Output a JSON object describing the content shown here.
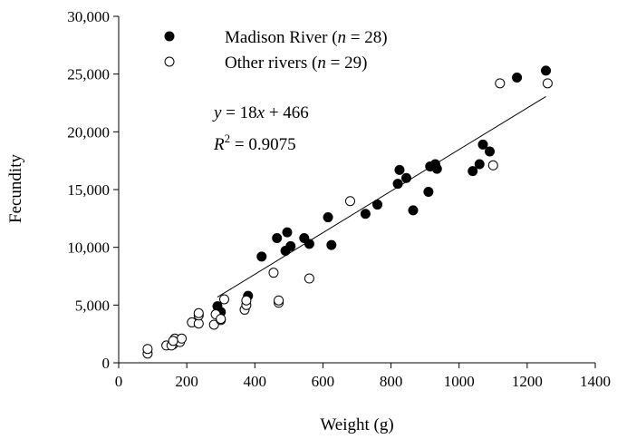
{
  "chart_data": {
    "type": "scatter",
    "title": "",
    "xlabel": "Weight (g)",
    "ylabel": "Fecundity",
    "xlim": [
      0,
      1400
    ],
    "ylim": [
      0,
      30000
    ],
    "x_ticks": [
      "0",
      "200",
      "400",
      "600",
      "800",
      "1000",
      "1200",
      "1400"
    ],
    "y_ticks": [
      "0",
      "5,000",
      "10,000",
      "15,000",
      "20,000",
      "25,000",
      "30,000"
    ],
    "grid": false,
    "legend_position": "top-left",
    "legend": [
      {
        "prefix": "Madison River (",
        "n_symbol": "n",
        "suffix": " = 28)",
        "marker": "filled"
      },
      {
        "prefix": "Other rivers (",
        "n_symbol": "n",
        "suffix": " = 29)",
        "marker": "open"
      }
    ],
    "annotation": {
      "eq_y": "y",
      "eq_mid": " = 18",
      "eq_x": "x",
      "eq_end": " + 466",
      "r_symbol": "R",
      "r_sup": "2",
      "r_value": " = 0.9075"
    },
    "series": [
      {
        "marker": "filled",
        "points": [
          [
            290,
            4900
          ],
          [
            300,
            4400
          ],
          [
            380,
            5800
          ],
          [
            420,
            9200
          ],
          [
            465,
            10800
          ],
          [
            490,
            9700
          ],
          [
            495,
            11300
          ],
          [
            505,
            10100
          ],
          [
            545,
            10800
          ],
          [
            560,
            10300
          ],
          [
            615,
            12600
          ],
          [
            625,
            10200
          ],
          [
            725,
            12900
          ],
          [
            760,
            13700
          ],
          [
            820,
            15500
          ],
          [
            825,
            16700
          ],
          [
            845,
            16000
          ],
          [
            865,
            13200
          ],
          [
            910,
            14800
          ],
          [
            915,
            17000
          ],
          [
            930,
            17200
          ],
          [
            935,
            16800
          ],
          [
            1040,
            16600
          ],
          [
            1060,
            17200
          ],
          [
            1070,
            18900
          ],
          [
            1090,
            18300
          ],
          [
            1170,
            24700
          ],
          [
            1255,
            25300
          ]
        ]
      },
      {
        "marker": "open",
        "points": [
          [
            85,
            800
          ],
          [
            85,
            1200
          ],
          [
            140,
            1500
          ],
          [
            160,
            1600
          ],
          [
            165,
            2100
          ],
          [
            180,
            1800
          ],
          [
            185,
            2100
          ],
          [
            215,
            3500
          ],
          [
            235,
            3400
          ],
          [
            235,
            4100
          ],
          [
            235,
            4300
          ],
          [
            280,
            3300
          ],
          [
            285,
            4200
          ],
          [
            300,
            3700
          ],
          [
            310,
            5500
          ],
          [
            370,
            4600
          ],
          [
            375,
            5000
          ],
          [
            375,
            5400
          ],
          [
            455,
            7800
          ],
          [
            470,
            5200
          ],
          [
            470,
            5400
          ],
          [
            560,
            7300
          ],
          [
            680,
            14000
          ],
          [
            1100,
            17100
          ],
          [
            1120,
            24200
          ],
          [
            1260,
            24200
          ],
          [
            155,
            1500
          ],
          [
            300,
            3800
          ],
          [
            160,
            1900
          ]
        ]
      }
    ],
    "fit_line": {
      "slope": 18,
      "intercept": 466,
      "x_range": [
        290,
        1255
      ]
    }
  }
}
